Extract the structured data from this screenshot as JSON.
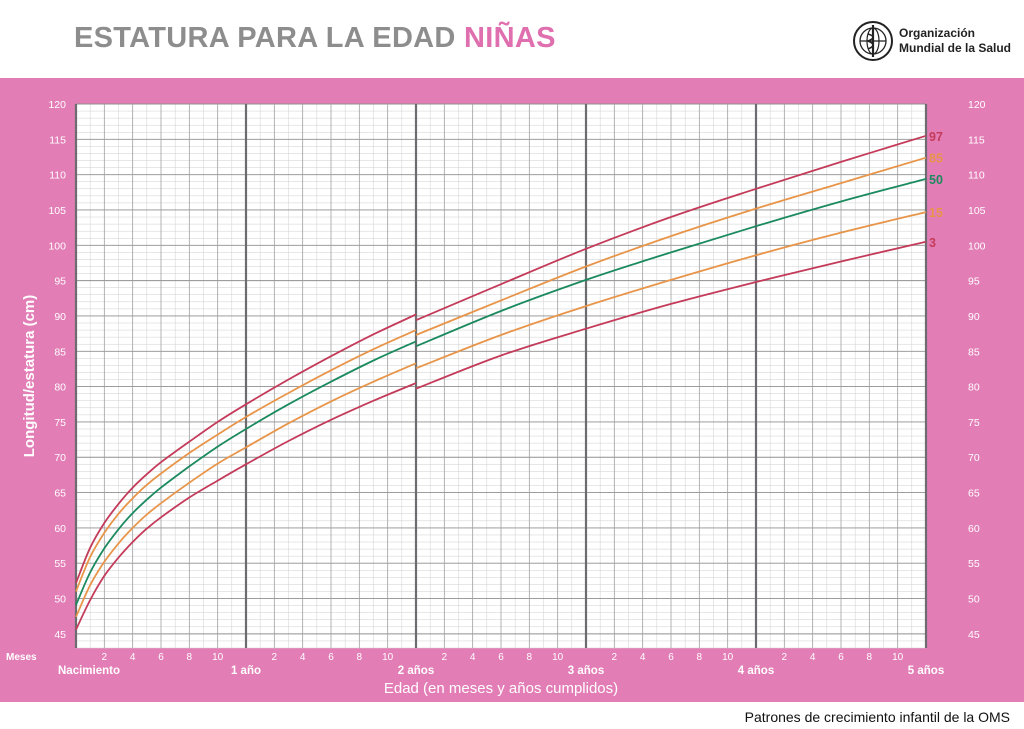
{
  "header": {
    "title_main": "ESTATURA PARA LA EDAD",
    "title_accent": "NIÑAS",
    "org_name": "Organización\nMundial de la Salud",
    "org_logo_icon": "who-emblem-icon"
  },
  "footer": {
    "text": "Patrones de crecimiento infantil de la OMS"
  },
  "colors": {
    "band": "#e37db6",
    "p97": "#c43b5a",
    "p85": "#e8954a",
    "p50": "#1b8a5e",
    "p15": "#e8954a",
    "p3": "#c43b5a"
  },
  "chart_data": {
    "type": "line",
    "ylabel": "Longitud/estatura (cm)",
    "xlabel": "Edad (en meses y años cumplidos)",
    "x_row_label": "Meses",
    "ylim": [
      43,
      120
    ],
    "xlim": [
      0,
      60
    ],
    "y_ticks": [
      45,
      50,
      55,
      60,
      65,
      70,
      75,
      80,
      85,
      90,
      95,
      100,
      105,
      110,
      115,
      120
    ],
    "month_ticks": [
      2,
      4,
      6,
      8,
      10
    ],
    "year_labels": [
      {
        "month": 0,
        "label": "Nacimiento"
      },
      {
        "month": 12,
        "label": "1 año"
      },
      {
        "month": 24,
        "label": "2 años"
      },
      {
        "month": 36,
        "label": "3 años"
      },
      {
        "month": 48,
        "label": "4 años"
      },
      {
        "month": 60,
        "label": "5 años"
      }
    ],
    "grid": true,
    "x_months": [
      0,
      1,
      2,
      3,
      4,
      5,
      6,
      8,
      10,
      12,
      15,
      18,
      21,
      24,
      30,
      36,
      42,
      48,
      54,
      60
    ],
    "series": [
      {
        "name": "97",
        "key": "p97",
        "values": [
          52.2,
          57.2,
          60.7,
          63.4,
          65.7,
          67.6,
          69.3,
          72.2,
          75.0,
          77.5,
          81.0,
          84.3,
          87.4,
          90.2,
          94.5,
          99.5,
          104.0,
          108.0,
          111.8,
          115.5
        ],
        "values_after_2y": [
          89.4,
          94.5,
          99.5,
          104.0,
          108.0,
          111.8,
          115.5
        ]
      },
      {
        "name": "85",
        "key": "p85",
        "values": [
          51.0,
          55.9,
          59.3,
          62.0,
          64.2,
          66.1,
          67.7,
          70.6,
          73.2,
          75.7,
          79.1,
          82.3,
          85.3,
          88.0,
          92.2,
          97.0,
          101.3,
          105.2,
          108.8,
          112.4
        ],
        "values_after_2y": [
          87.3,
          92.2,
          97.0,
          101.3,
          105.2,
          108.8,
          112.4
        ]
      },
      {
        "name": "50",
        "key": "p50",
        "values": [
          49.1,
          53.7,
          57.1,
          59.8,
          62.1,
          64.0,
          65.7,
          68.7,
          71.5,
          74.0,
          77.5,
          80.7,
          83.7,
          86.4,
          90.7,
          95.1,
          99.0,
          102.7,
          106.2,
          109.4
        ],
        "values_after_2y": [
          85.7,
          90.7,
          95.1,
          99.0,
          102.7,
          106.2,
          109.4
        ]
      },
      {
        "name": "15",
        "key": "p15",
        "values": [
          47.4,
          51.9,
          55.2,
          57.8,
          60.0,
          61.9,
          63.5,
          66.4,
          69.1,
          71.4,
          74.8,
          77.9,
          80.7,
          83.3,
          87.3,
          91.4,
          95.1,
          98.6,
          101.8,
          104.7
        ],
        "values_after_2y": [
          82.6,
          87.3,
          91.4,
          95.1,
          98.6,
          101.8,
          104.7
        ]
      },
      {
        "name": "3",
        "key": "p3",
        "values": [
          45.6,
          49.8,
          53.2,
          55.8,
          58.0,
          59.9,
          61.5,
          64.3,
          66.7,
          69.0,
          72.3,
          75.3,
          78.0,
          80.5,
          84.4,
          88.2,
          91.7,
          94.8,
          97.7,
          100.5
        ],
        "values_after_2y": [
          79.7,
          84.4,
          88.2,
          91.7,
          94.8,
          97.7,
          100.5
        ]
      }
    ]
  }
}
